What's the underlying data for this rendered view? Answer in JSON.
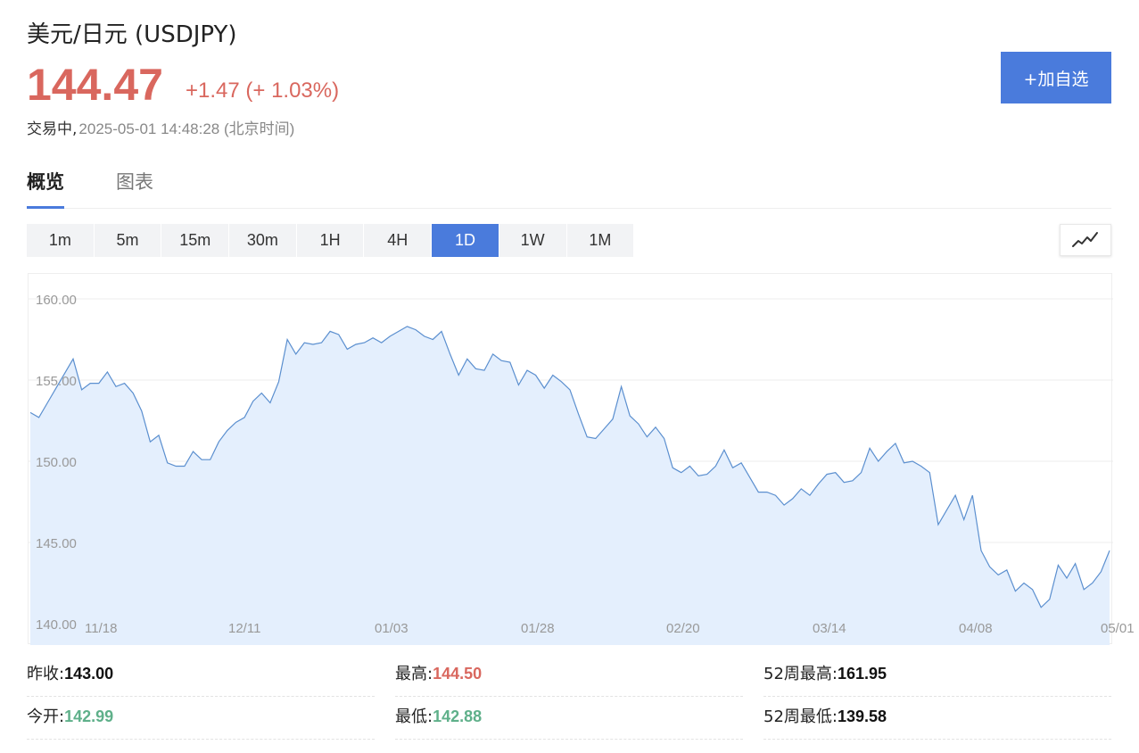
{
  "header": {
    "title": "美元/日元 (USDJPY)",
    "price": "144.47",
    "change": "+1.47 (+ 1.03%)",
    "status_label": "交易中,",
    "timestamp": "2025-05-01 14:48:28 (北京时间)",
    "add_button": "+加自选"
  },
  "tabs": [
    {
      "label": "概览",
      "active": true
    },
    {
      "label": "图表",
      "active": false
    }
  ],
  "intervals": [
    "1m",
    "5m",
    "15m",
    "30m",
    "1H",
    "4H",
    "1D",
    "1W",
    "1M"
  ],
  "active_interval": "1D",
  "colors": {
    "accent": "#4a7bdc",
    "up": "#d9675e",
    "down": "#5fb08a",
    "line": "#5b8fcf",
    "area": "#e4effd"
  },
  "chart_data": {
    "type": "area",
    "y_ticks": [
      "160.00",
      "155.00",
      "150.00",
      "145.00",
      "140.00"
    ],
    "ylim": [
      140,
      160
    ],
    "x_ticks": [
      "11/18",
      "12/11",
      "01/03",
      "01/28",
      "02/20",
      "03/14",
      "04/08",
      "05/01"
    ],
    "grid": true,
    "values": [
      153.0,
      152.7,
      153.6,
      154.5,
      155.4,
      156.3,
      154.4,
      154.8,
      154.8,
      155.5,
      154.6,
      154.8,
      154.2,
      153.1,
      151.2,
      151.6,
      149.9,
      149.7,
      149.7,
      150.6,
      150.1,
      150.1,
      151.2,
      151.9,
      152.4,
      152.7,
      153.7,
      154.2,
      153.6,
      154.9,
      157.5,
      156.6,
      157.3,
      157.2,
      157.3,
      158.0,
      157.8,
      156.9,
      157.2,
      157.3,
      157.6,
      157.3,
      157.7,
      158.0,
      158.3,
      158.1,
      157.7,
      157.5,
      158.0,
      156.6,
      155.3,
      156.3,
      155.7,
      155.6,
      156.6,
      156.2,
      156.1,
      154.7,
      155.6,
      155.3,
      154.5,
      155.3,
      154.9,
      154.4,
      152.9,
      151.5,
      151.4,
      152.0,
      152.6,
      154.6,
      152.8,
      152.3,
      151.5,
      152.1,
      151.4,
      149.6,
      149.3,
      149.7,
      149.1,
      149.2,
      149.7,
      150.7,
      149.6,
      149.9,
      149.0,
      148.1,
      148.1,
      147.9,
      147.3,
      147.7,
      148.3,
      147.9,
      148.6,
      149.2,
      149.3,
      148.7,
      148.8,
      149.3,
      150.8,
      150.0,
      150.6,
      151.1,
      149.9,
      150.0,
      149.7,
      149.3,
      146.1,
      147.0,
      147.9,
      146.4,
      147.9,
      144.5,
      143.5,
      143.0,
      143.3,
      142.0,
      142.5,
      142.1,
      141.0,
      141.5,
      143.6,
      142.8,
      143.7,
      142.1,
      142.5,
      143.2,
      144.5
    ]
  },
  "stats": [
    {
      "label": "昨收:",
      "value": "143.00",
      "tone": "neutral"
    },
    {
      "label": "最高:",
      "value": "144.50",
      "tone": "red"
    },
    {
      "label": "52周最高:",
      "value": "161.95",
      "tone": "neutral"
    },
    {
      "label": "今开:",
      "value": "142.99",
      "tone": "green"
    },
    {
      "label": "最低:",
      "value": "142.88",
      "tone": "green"
    },
    {
      "label": "52周最低:",
      "value": "139.58",
      "tone": "neutral"
    }
  ]
}
